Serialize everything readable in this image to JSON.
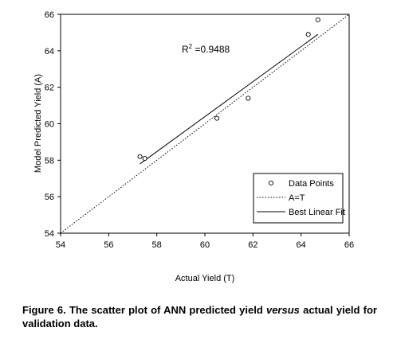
{
  "chart_data": {
    "type": "scatter",
    "xlabel": "Actual Yield (T)",
    "ylabel": "Model Predicted Yield (A)",
    "xlim": [
      54,
      66
    ],
    "ylim": [
      54,
      66
    ],
    "x_ticks": [
      54,
      56,
      58,
      60,
      62,
      64,
      66
    ],
    "y_ticks": [
      54,
      56,
      58,
      60,
      62,
      64,
      66
    ],
    "grid": false,
    "legend_position": "bottom-right",
    "series": [
      {
        "name": "Data Points",
        "kind": "points",
        "marker": "open-circle",
        "x": [
          57.3,
          57.5,
          60.5,
          61.8,
          64.3,
          64.7
        ],
        "y": [
          58.2,
          58.1,
          60.3,
          61.4,
          64.9,
          65.7
        ]
      },
      {
        "name": "A=T",
        "kind": "line",
        "style": "dotted",
        "x": [
          54,
          66
        ],
        "y": [
          54,
          66
        ]
      },
      {
        "name": "Best Linear Fit",
        "kind": "line",
        "style": "solid",
        "x": [
          57.3,
          64.7
        ],
        "y": [
          57.8,
          64.9
        ]
      }
    ],
    "annotation": {
      "text_main": "R",
      "text_sup": "2",
      "text_value": " =0.9488"
    }
  },
  "caption": {
    "part1": "Figure 6. The scatter plot of ANN predicted yield ",
    "italic": "versus",
    "part2": " actual yield for validation data."
  }
}
